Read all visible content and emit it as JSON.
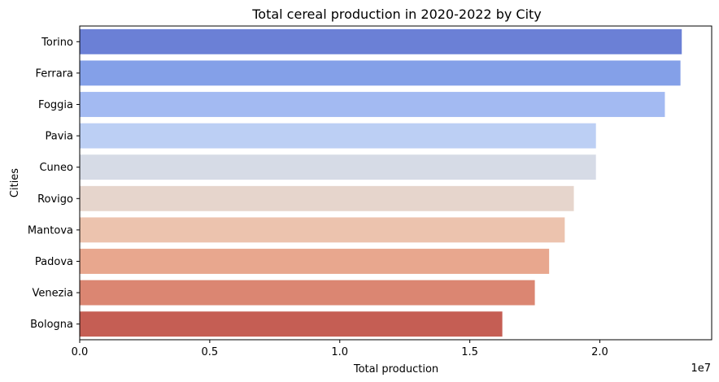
{
  "chart_data": {
    "type": "bar",
    "orientation": "horizontal",
    "title": "Total cereal production in 2020-2022 by City",
    "xlabel": "Total production",
    "ylabel": "Cities",
    "x_scale_label": "1e7",
    "xlim": [
      0,
      24300000
    ],
    "x_ticks": [
      0,
      5000000,
      10000000,
      15000000,
      20000000
    ],
    "x_tick_labels": [
      "0.0",
      "0.5",
      "1.0",
      "1.5",
      "2.0"
    ],
    "grid": false,
    "legend": "none",
    "categories": [
      "Torino",
      "Ferrara",
      "Foggia",
      "Pavia",
      "Cuneo",
      "Rovigo",
      "Mantova",
      "Padova",
      "Venezia",
      "Bologna"
    ],
    "values": [
      23150000,
      23100000,
      22500000,
      19850000,
      19850000,
      19000000,
      18650000,
      18050000,
      17500000,
      16250000
    ],
    "colors": [
      "#6b80d6",
      "#84a0e8",
      "#a3baf2",
      "#bccff4",
      "#d6dbe6",
      "#e6d5cc",
      "#ecc3ae",
      "#e8a78e",
      "#db8672",
      "#c55e54"
    ]
  }
}
